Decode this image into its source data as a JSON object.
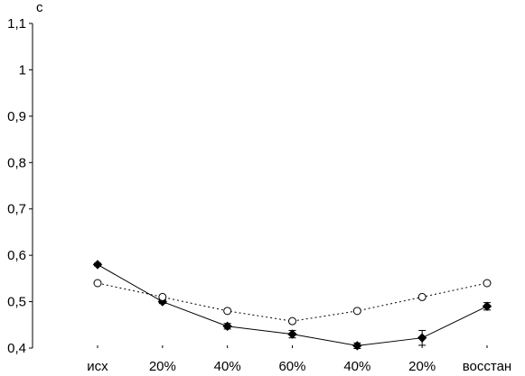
{
  "chart_data": {
    "type": "line",
    "title": "",
    "xlabel": "",
    "ylabel": "с",
    "categories": [
      "исх",
      "20%",
      "40%",
      "60%",
      "40%",
      "20%",
      "восстан"
    ],
    "y_ticks": [
      "0,4",
      "0,5",
      "0,6",
      "0,7",
      "0,8",
      "0,9",
      "1",
      "1,1"
    ],
    "ylim": [
      0.4,
      1.1
    ],
    "grid": false,
    "legend": "none",
    "series": [
      {
        "marker": "filled-diamond",
        "line_style": "solid",
        "values": [
          0.58,
          0.5,
          0.447,
          0.43,
          0.405,
          0.422,
          0.49
        ],
        "error": [
          0.003,
          0.004,
          0.006,
          0.008,
          0.006,
          0.016,
          0.008
        ]
      },
      {
        "marker": "open-circle",
        "line_style": "dotted",
        "values": [
          0.54,
          0.51,
          0.48,
          0.458,
          0.48,
          0.51,
          0.54
        ],
        "error": [
          0,
          0,
          0,
          0,
          0,
          0,
          0
        ]
      }
    ]
  }
}
